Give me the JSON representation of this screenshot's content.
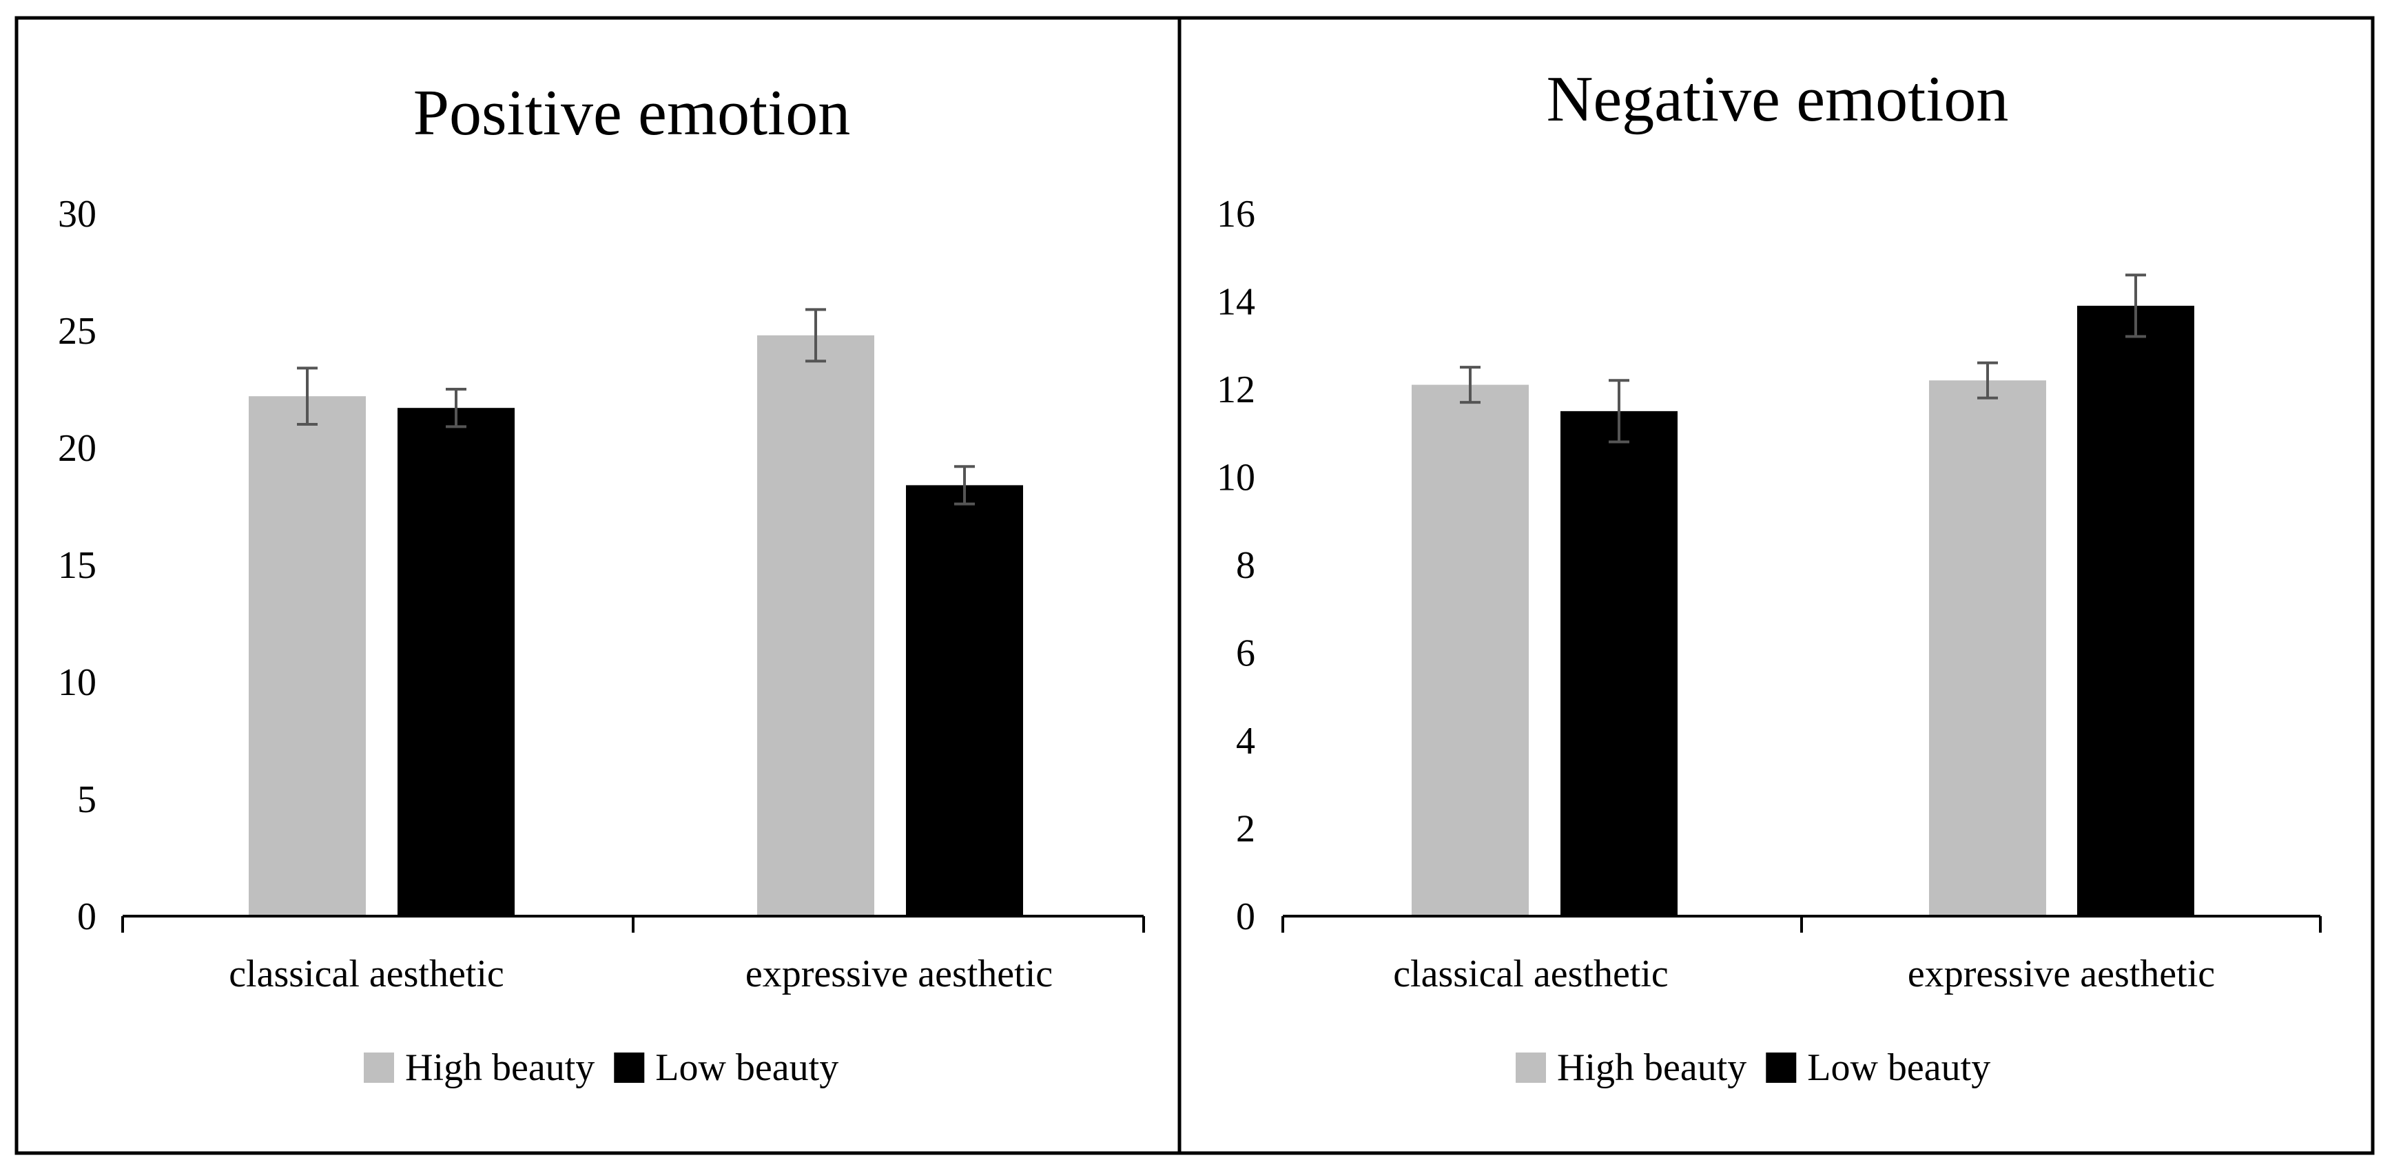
{
  "chart_data": [
    {
      "type": "bar",
      "title": "Positive emotion",
      "xlabel": "",
      "ylabel": "",
      "categories": [
        "classical aesthetic",
        "expressive aesthetic"
      ],
      "ylim": [
        0,
        30
      ],
      "yticks": [
        0,
        5,
        10,
        15,
        20,
        25,
        30
      ],
      "ytick_labels": [
        "0",
        "5",
        "10",
        "15",
        "20",
        "25",
        "30"
      ],
      "grid": false,
      "legend_position": "bottom",
      "series": [
        {
          "name": "High beauty",
          "color": "#bfbfbf",
          "values": [
            22.2,
            24.8
          ],
          "errors": [
            1.2,
            1.1
          ]
        },
        {
          "name": "Low beauty",
          "color": "#000000",
          "values": [
            21.7,
            18.4
          ],
          "errors": [
            0.8,
            0.8
          ]
        }
      ]
    },
    {
      "type": "bar",
      "title": "Negative emotion",
      "xlabel": "",
      "ylabel": "",
      "categories": [
        "classical aesthetic",
        "expressive aesthetic"
      ],
      "ylim": [
        0,
        16
      ],
      "yticks": [
        0,
        2,
        4,
        6,
        8,
        10,
        12,
        14,
        16
      ],
      "ytick_labels": [
        "0",
        "2",
        "4",
        "6",
        "8",
        "10",
        "12",
        "14",
        "16"
      ],
      "grid": false,
      "legend_position": "bottom",
      "series": [
        {
          "name": "High beauty",
          "color": "#bfbfbf",
          "values": [
            12.1,
            12.2
          ],
          "errors": [
            0.4,
            0.4
          ]
        },
        {
          "name": "Low beauty",
          "color": "#000000",
          "values": [
            11.5,
            13.9
          ],
          "errors": [
            0.7,
            0.7
          ]
        }
      ]
    }
  ],
  "error_bar_color": "#555555"
}
